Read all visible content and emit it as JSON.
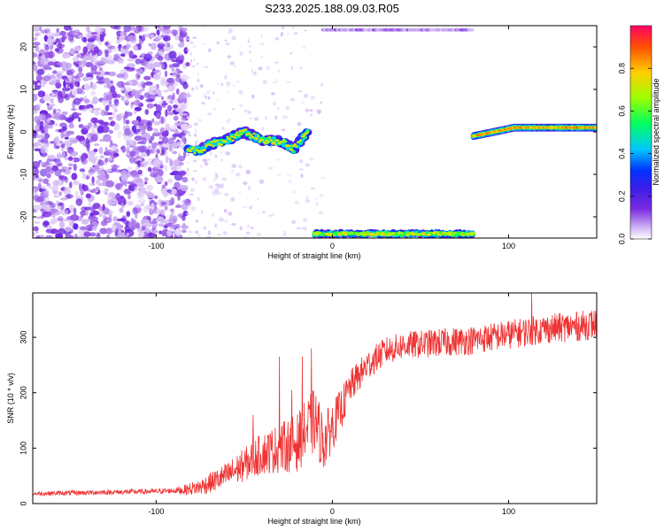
{
  "title": "S233.2025.188.09.03.R05",
  "chart_data": [
    {
      "type": "heatmap",
      "xlabel": "Height of straight line (km)",
      "ylabel": "Frequency (Hz)",
      "xlim": [
        -170,
        150
      ],
      "ylim": [
        -25,
        25
      ],
      "x_ticks": [
        -100,
        0,
        100
      ],
      "y_ticks": [
        -20,
        -10,
        0,
        10,
        20
      ],
      "colorbar": {
        "label": "Normalized spectral amplitude",
        "range": [
          0,
          1
        ],
        "ticks": [
          0.0,
          0.2,
          0.4,
          0.6,
          0.8
        ],
        "colormap": [
          "#ffffff",
          "#c9a9f2",
          "#7b2be0",
          "#3a1ee8",
          "#0030ff",
          "#00c8ff",
          "#00ff60",
          "#9cff00",
          "#ffd000",
          "#ff5000",
          "#ff0066"
        ]
      },
      "features": [
        {
          "desc": "broadband noise",
          "x_range": [
            -170,
            -82
          ],
          "y_range": [
            -25,
            25
          ],
          "amplitude": 0.15
        },
        {
          "desc": "faint noise",
          "x_range": [
            -82,
            -5
          ],
          "y_range": [
            -25,
            25
          ],
          "amplitude": 0.08
        },
        {
          "desc": "signal track",
          "points": [
            [
              -82,
              -4
            ],
            [
              -75,
              -4.5
            ],
            [
              -70,
              -3
            ],
            [
              -60,
              -2
            ],
            [
              -55,
              -1
            ],
            [
              -50,
              0
            ],
            [
              -45,
              -1
            ],
            [
              -40,
              -2
            ],
            [
              -35,
              -2
            ],
            [
              -28,
              -2.5
            ],
            [
              -22,
              -4
            ],
            [
              -18,
              -2
            ],
            [
              -14,
              0
            ]
          ],
          "amplitude": 0.55
        },
        {
          "desc": "low-frequency band",
          "x_range": [
            -10,
            80
          ],
          "y": -24,
          "amplitude": 0.6
        },
        {
          "desc": "upper edge band",
          "x_range": [
            -5,
            80
          ],
          "y": 24,
          "amplitude": 0.1
        },
        {
          "desc": "right signal band",
          "x_range": [
            80,
            150
          ],
          "y_start": -1,
          "y_end": 1,
          "amplitude": 0.7
        }
      ]
    },
    {
      "type": "line",
      "xlabel": "Height of straight line (km)",
      "ylabel": "SNR (10 * v/v)",
      "xlim": [
        -170,
        150
      ],
      "ylim": [
        0,
        380
      ],
      "x_ticks": [
        -100,
        0,
        100
      ],
      "y_ticks": [
        0,
        100,
        200,
        300
      ],
      "color": "#ee3333",
      "trend": {
        "x": [
          -170,
          -100,
          -85,
          -75,
          -60,
          -50,
          -40,
          -30,
          -20,
          -10,
          -5,
          5,
          10,
          20,
          30,
          40,
          60,
          80,
          100,
          120,
          140,
          150
        ],
        "y": [
          18,
          22,
          24,
          30,
          50,
          70,
          90,
          100,
          110,
          150,
          110,
          170,
          210,
          250,
          275,
          285,
          290,
          295,
          305,
          315,
          320,
          325
        ]
      },
      "noise_amplitude": [
        [
          -170,
          8
        ],
        [
          -90,
          10
        ],
        [
          -75,
          30
        ],
        [
          -50,
          60
        ],
        [
          -30,
          90
        ],
        [
          -10,
          120
        ],
        [
          0,
          90
        ],
        [
          10,
          60
        ],
        [
          30,
          50
        ],
        [
          150,
          55
        ]
      ],
      "spikes": [
        {
          "x": -45,
          "y": 160
        },
        {
          "x": -30,
          "y": 265
        },
        {
          "x": -23,
          "y": 205
        },
        {
          "x": -17,
          "y": 265
        },
        {
          "x": -12,
          "y": 280
        },
        {
          "x": 113,
          "y": 380
        }
      ]
    }
  ]
}
